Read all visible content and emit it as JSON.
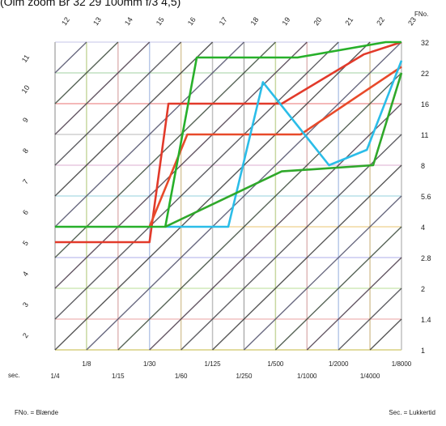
{
  "header_fragment": "(Olm zoom  Br 32  29  100mm f/3  4,5)",
  "chart_data": {
    "type": "line",
    "title": "",
    "x_axis": {
      "unit_label": "sec.",
      "shutter_ticks": [
        "1/4",
        "1/8",
        "1/15",
        "1/30",
        "1/60",
        "1/125",
        "1/250",
        "1/500",
        "1/1000",
        "1/2000",
        "1/4000",
        "1/8000"
      ],
      "upper_labels": [
        "1/8",
        "1/30",
        "1/125",
        "1/500",
        "1/2000",
        "1/8000"
      ],
      "lower_labels": [
        "1/4",
        "1/15",
        "1/60",
        "1/250",
        "1/1000",
        "1/4000"
      ],
      "caption": "Sec. = Lukkertid"
    },
    "y_axis": {
      "unit_label": "FNo.",
      "f_numbers": [
        "1",
        "1.4",
        "2",
        "2.8",
        "4",
        "5.6",
        "8",
        "11",
        "16",
        "22",
        "32"
      ],
      "caption": "FNo. = Blænde"
    },
    "ev_labels_left": [
      "2",
      "3",
      "4",
      "5",
      "6",
      "7",
      "8",
      "9",
      "10",
      "11"
    ],
    "ev_labels_top": [
      "12",
      "13",
      "14",
      "15",
      "16",
      "17",
      "18",
      "19",
      "20",
      "21",
      "22",
      "23"
    ],
    "grid": true,
    "series": [
      {
        "color": "#e23a2a",
        "x_stop": [
          0,
          3,
          3.6,
          7.2,
          9.8,
          11
        ],
        "y_stop": [
          3.5,
          3.5,
          8,
          8,
          9.6,
          10
        ]
      },
      {
        "color": "#e84a2a",
        "x_stop": [
          3,
          4.2,
          5,
          7.8,
          11
        ],
        "y_stop": [
          4,
          7,
          7,
          7,
          9.2
        ]
      },
      {
        "color": "#2bbde8",
        "x_stop": [
          3.5,
          5.5,
          6.6,
          8.7,
          9.9,
          11
        ],
        "y_stop": [
          4,
          4,
          8.7,
          6,
          6.5,
          9.4
        ]
      },
      {
        "color": "#27b02a",
        "x_stop": [
          0,
          3.5,
          4.5,
          7.7,
          10.5,
          11
        ],
        "y_stop": [
          4,
          4,
          9.5,
          9.5,
          10,
          10
        ]
      },
      {
        "color": "#2fa82a",
        "x_stop": [
          3.5,
          7.2,
          10.1,
          11
        ],
        "y_stop": [
          4,
          5.8,
          6,
          9
        ]
      }
    ]
  }
}
